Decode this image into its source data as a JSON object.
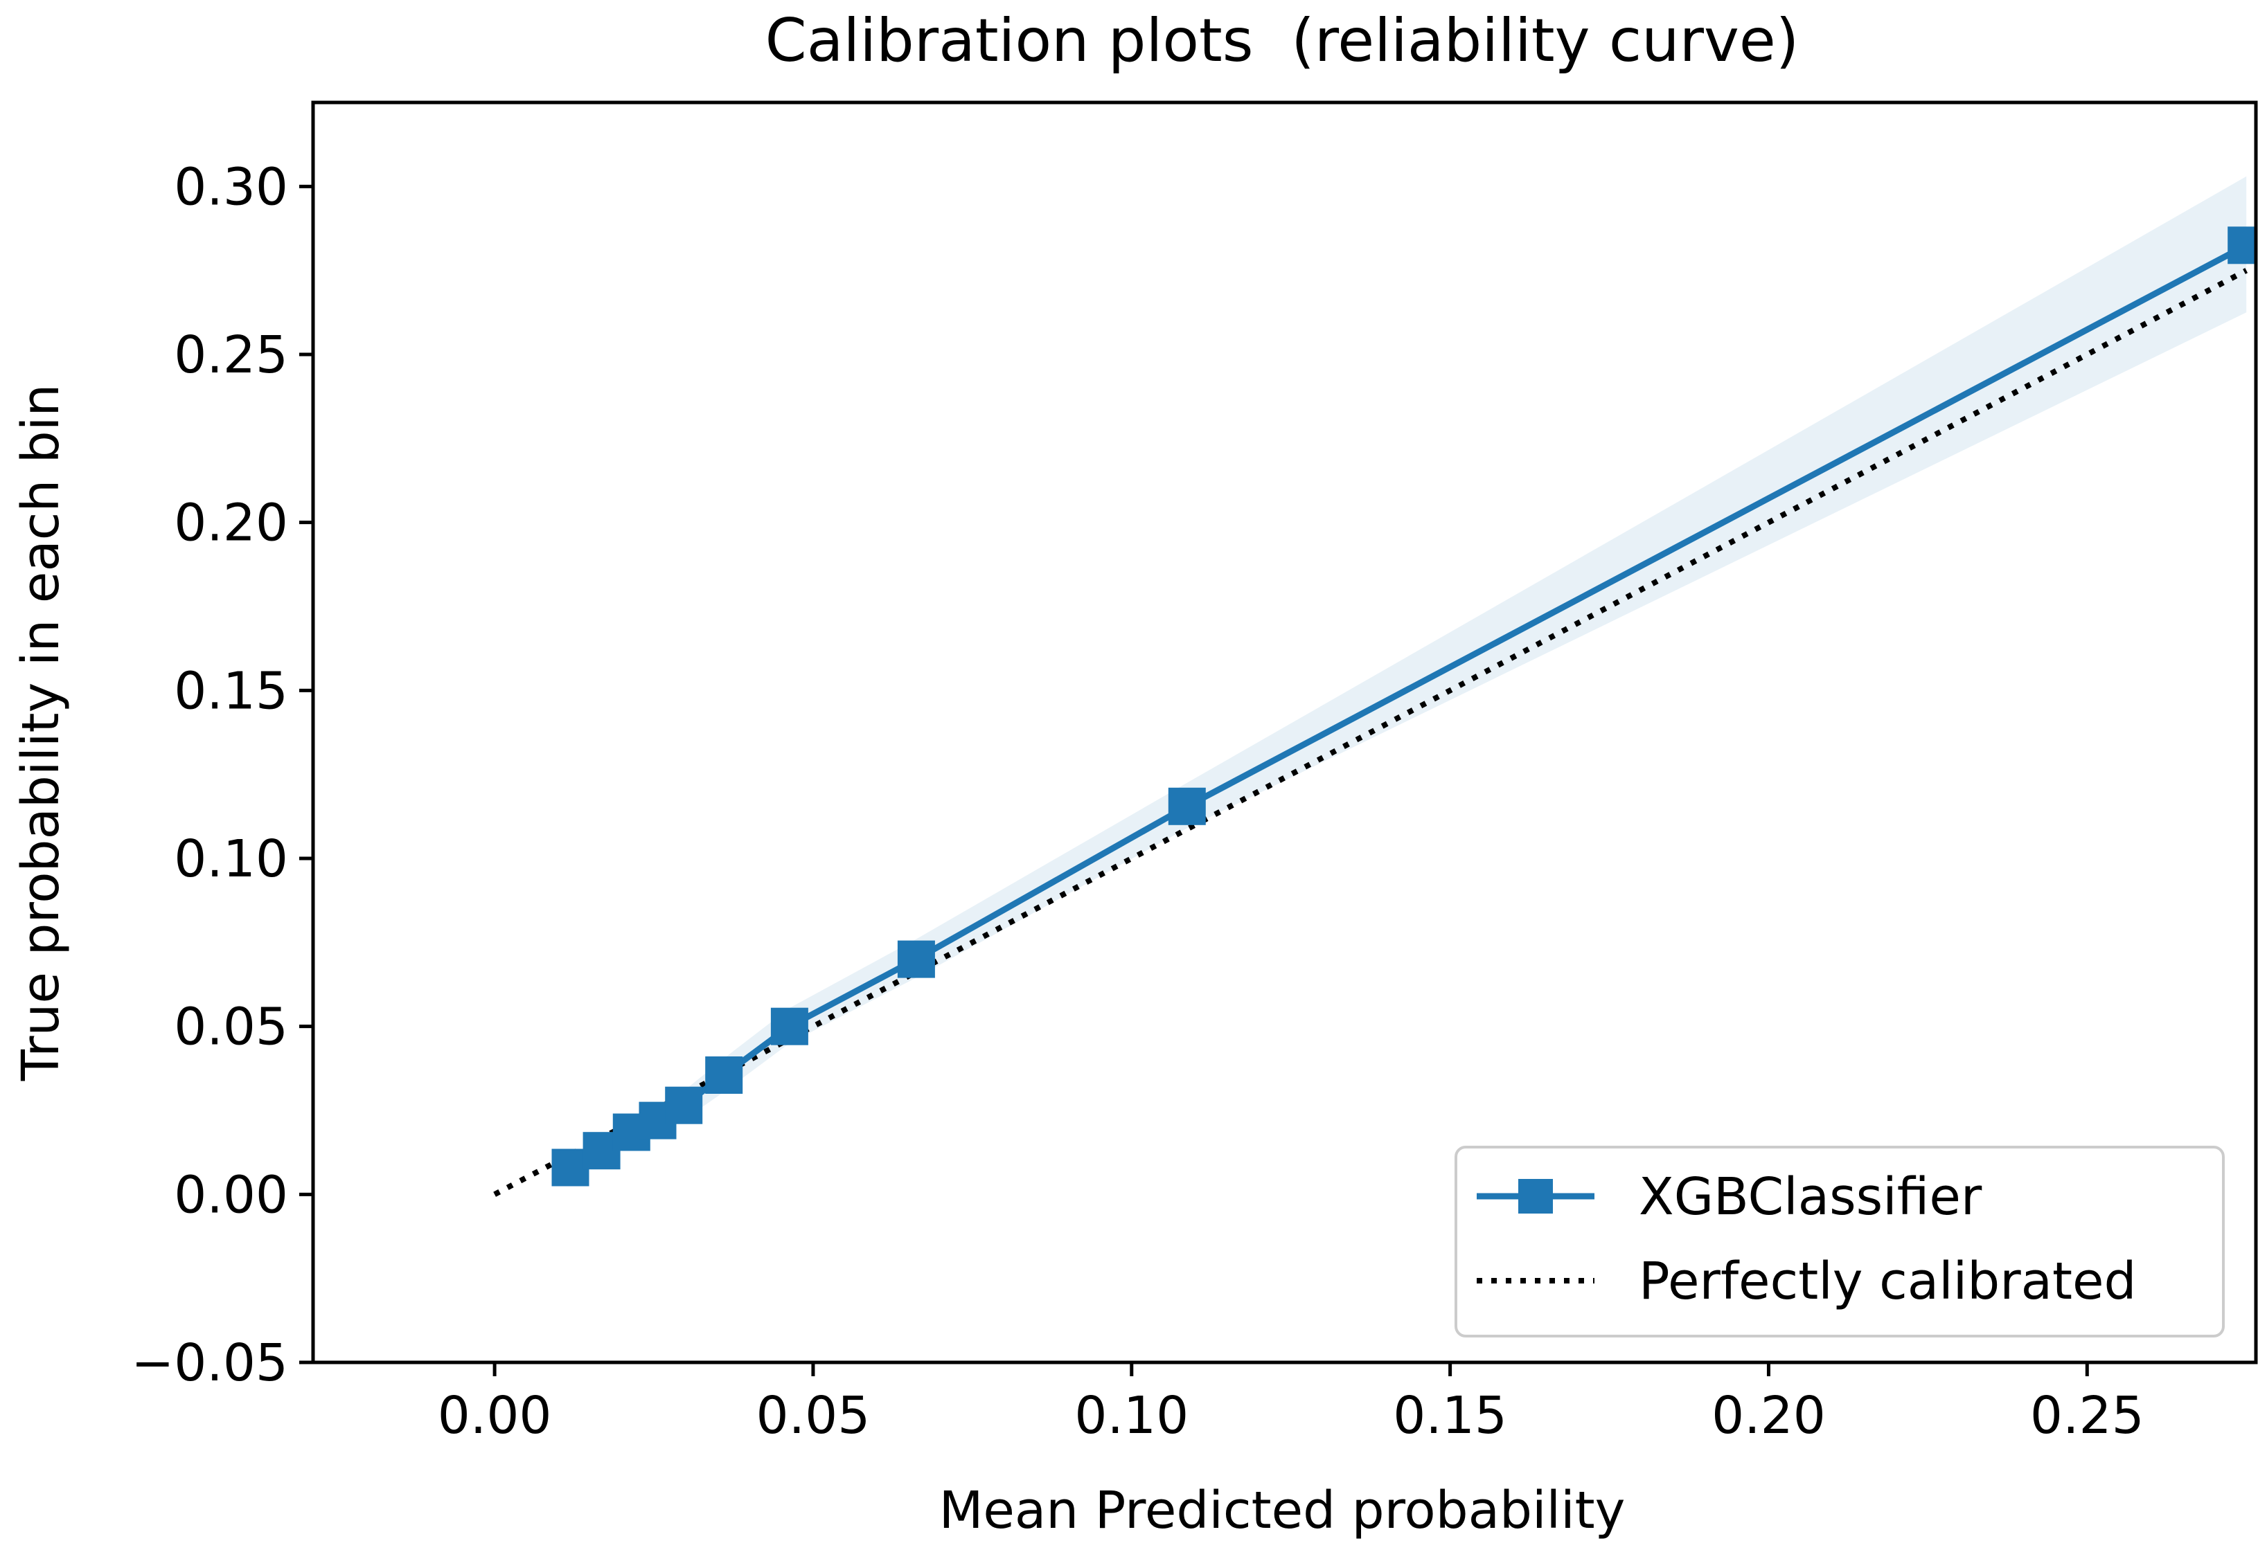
{
  "chart_data": {
    "type": "line",
    "title": "Calibration plots  (reliability curve)",
    "xlabel": "Mean Predicted probability",
    "ylabel": "True probability in each bin",
    "xlim": [
      -0.0285,
      0.2765
    ],
    "ylim": [
      -0.05,
      0.325
    ],
    "x_ticks": [
      0.0,
      0.05,
      0.1,
      0.15,
      0.2,
      0.25
    ],
    "x_tick_labels": [
      "0.00",
      "0.05",
      "0.10",
      "0.15",
      "0.20",
      "0.25"
    ],
    "y_ticks": [
      -0.05,
      0.0,
      0.05,
      0.1,
      0.15,
      0.2,
      0.25,
      0.3
    ],
    "y_tick_labels": [
      "−0.05",
      "0.00",
      "0.05",
      "0.10",
      "0.15",
      "0.20",
      "0.25",
      "0.30"
    ],
    "grid": false,
    "legend_position": "bottom-right",
    "series": [
      {
        "name": "XGBClassifier",
        "style": "line-square-marker",
        "color": "#1f77b4",
        "x": [
          0.0119,
          0.0168,
          0.0215,
          0.0256,
          0.0297,
          0.036,
          0.0463,
          0.0662,
          0.1087,
          0.275
        ],
        "y": [
          0.008,
          0.013,
          0.0185,
          0.022,
          0.0265,
          0.0355,
          0.05,
          0.07,
          0.1155,
          0.2825
        ]
      },
      {
        "name": "Perfectly calibrated",
        "style": "dotted",
        "color": "#000000",
        "x": [
          0.0,
          0.275
        ],
        "y": [
          0.0,
          0.275
        ]
      }
    ],
    "confidence_band": {
      "series": "XGBClassifier",
      "color": "#1f77b4",
      "x": [
        0.0119,
        0.0168,
        0.0215,
        0.0256,
        0.0297,
        0.036,
        0.0463,
        0.0662,
        0.1087,
        0.275
      ],
      "lower": [
        0.005,
        0.0098,
        0.015,
        0.018,
        0.0222,
        0.0305,
        0.045,
        0.0645,
        0.109,
        0.2625
      ],
      "upper": [
        0.011,
        0.0162,
        0.022,
        0.026,
        0.0308,
        0.0405,
        0.0555,
        0.076,
        0.1225,
        0.303
      ]
    }
  }
}
